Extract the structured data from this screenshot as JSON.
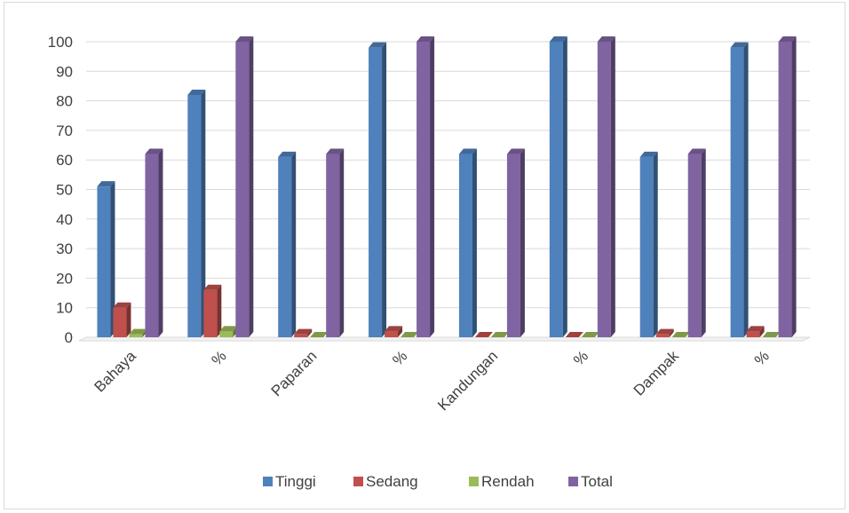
{
  "chart_data": {
    "type": "bar",
    "title": "",
    "xlabel": "",
    "ylabel": "",
    "ylim": [
      0,
      100
    ],
    "y_ticks": [
      "0",
      "10",
      "20",
      "30",
      "40",
      "50",
      "60",
      "70",
      "80",
      "90",
      "100"
    ],
    "grid": true,
    "legend_position": "bottom",
    "categories": [
      "Bahaya",
      "%",
      "Paparan",
      "%",
      "Kandungan",
      "%",
      "Dampak",
      "%"
    ],
    "series": [
      {
        "name": "Tinggi",
        "color": "#4f81bd",
        "values": [
          51,
          82,
          61,
          98,
          62,
          100,
          61,
          98
        ]
      },
      {
        "name": "Sedang",
        "color": "#c0504d",
        "values": [
          10,
          16,
          1,
          2,
          0,
          0,
          1,
          2
        ]
      },
      {
        "name": "Rendah",
        "color": "#9bbb59",
        "values": [
          1,
          2,
          0,
          0,
          0,
          0,
          0,
          0
        ]
      },
      {
        "name": "Total",
        "color": "#8064a2",
        "values": [
          62,
          100,
          62,
          100,
          62,
          100,
          62,
          100
        ]
      }
    ]
  }
}
